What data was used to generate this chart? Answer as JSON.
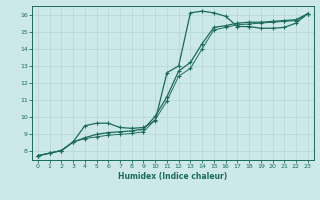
{
  "xlabel": "Humidex (Indice chaleur)",
  "bg_color": "#cce8e8",
  "grid_color": "#b8d8d8",
  "line_color": "#1a6b5a",
  "xlim": [
    -0.5,
    23.5
  ],
  "ylim": [
    7.5,
    16.5
  ],
  "xticks": [
    0,
    1,
    2,
    3,
    4,
    5,
    6,
    7,
    8,
    9,
    10,
    11,
    12,
    13,
    14,
    15,
    16,
    17,
    18,
    19,
    20,
    21,
    22,
    23
  ],
  "yticks": [
    8,
    9,
    10,
    11,
    12,
    13,
    14,
    15,
    16
  ],
  "line1_x": [
    0,
    1,
    2,
    3,
    4,
    5,
    6,
    7,
    8,
    9,
    10,
    11,
    12,
    13,
    14,
    15,
    16,
    17,
    18,
    19,
    20,
    21,
    22,
    23
  ],
  "line1_y": [
    7.75,
    7.9,
    8.05,
    8.55,
    9.5,
    9.65,
    9.65,
    9.4,
    9.35,
    9.4,
    9.8,
    12.6,
    13.0,
    16.1,
    16.2,
    16.1,
    15.9,
    15.3,
    15.3,
    15.2,
    15.2,
    15.25,
    15.5,
    16.05
  ],
  "line2_x": [
    0,
    1,
    2,
    3,
    4,
    5,
    6,
    7,
    8,
    9,
    10,
    11,
    12,
    13,
    14,
    15,
    16,
    17,
    18,
    19,
    20,
    21,
    22,
    23
  ],
  "line2_y": [
    7.75,
    7.9,
    8.05,
    8.55,
    8.8,
    9.0,
    9.1,
    9.15,
    9.2,
    9.3,
    10.05,
    11.2,
    12.7,
    13.2,
    14.3,
    15.25,
    15.35,
    15.5,
    15.55,
    15.55,
    15.6,
    15.65,
    15.7,
    16.05
  ],
  "line3_x": [
    0,
    1,
    2,
    3,
    4,
    5,
    6,
    7,
    8,
    9,
    10,
    11,
    12,
    13,
    14,
    15,
    16,
    17,
    18,
    19,
    20,
    21,
    22,
    23
  ],
  "line3_y": [
    7.75,
    7.9,
    8.05,
    8.55,
    8.75,
    8.85,
    8.95,
    9.0,
    9.05,
    9.15,
    9.85,
    10.95,
    12.4,
    12.85,
    14.0,
    15.1,
    15.25,
    15.4,
    15.45,
    15.5,
    15.55,
    15.6,
    15.65,
    16.05
  ]
}
